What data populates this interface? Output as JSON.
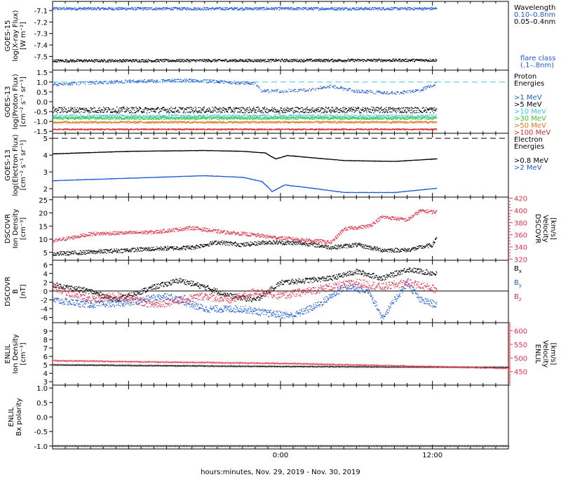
{
  "chart_data": {
    "type": "scatter",
    "xlabel": "hours:minutes, Nov. 29, 2019 - Nov. 30, 2019",
    "x_range_hours": [
      -18,
      18
    ],
    "x_ticks": [
      {
        "h": 0,
        "label": "0:00"
      },
      {
        "h": 12,
        "label": "12:00"
      }
    ],
    "data_end_hour": 12.3,
    "panels": [
      {
        "id": "goes15-xray",
        "ylabel": [
          "GOES-15",
          "log(X-ray Flux)",
          "[W m⁻²]"
        ],
        "ylim": [
          -7.62,
          -7.02
        ],
        "yticks": [
          -7.1,
          -7.2,
          -7.3,
          -7.4,
          -7.5
        ],
        "ytick_labels": [
          "-7.1",
          "-7.2",
          "-7.3",
          "-7.4",
          "-7.5"
        ],
        "right_legend": [
          {
            "text": "Wavelength",
            "color": "#000000"
          },
          {
            "text": "0.10–0.8nm",
            "color": "#1e5bd8"
          },
          {
            "text": "0.05–0.4nm",
            "color": "#000000"
          }
        ],
        "right_legend_bottom": [
          {
            "text": "flare class",
            "color": "#1e5bd8"
          },
          {
            "text": "(.1–.8nm)",
            "color": "#1e5bd8"
          }
        ],
        "series": [
          {
            "name": "0.10–0.8nm",
            "color": "#1e5bd8",
            "base": -7.08,
            "noise": 0.012,
            "pts": [
              [
                -18,
                -7.08
              ],
              [
                12.3,
                -7.08
              ]
            ]
          },
          {
            "name": "0.05–0.4nm",
            "color": "#000000",
            "base": -7.535,
            "noise": 0.012,
            "pts": [
              [
                -18,
                -7.535
              ],
              [
                12.3,
                -7.53
              ]
            ]
          }
        ]
      },
      {
        "id": "goes13-proton",
        "ylabel": [
          "GOES-13",
          "log(Proton Flux)",
          "[cm⁻² s⁻¹ sr⁻¹]"
        ],
        "ylim": [
          -1.6,
          1.6
        ],
        "yticks": [
          1.5,
          1.0,
          0.5,
          0.0,
          -0.5,
          -1.0,
          -1.5
        ],
        "ytick_labels": [
          "1.5",
          "1.0",
          "0.5",
          "0.0",
          "-0.5",
          "-1.0",
          "-1.5"
        ],
        "threshold": {
          "value": 1.0,
          "color": "#3ec8e8"
        },
        "right_legend": [
          {
            "text": "Proton",
            "color": "#000000"
          },
          {
            "text": "Energies",
            "color": "#000000"
          },
          {
            "text": "",
            "color": "#000000"
          },
          {
            "text": ">1 MeV",
            "color": "#1e5bd8"
          },
          {
            "text": ">5 MeV",
            "color": "#000000"
          },
          {
            "text": ">10 MeV",
            "color": "#3ec8e8"
          },
          {
            "text": ">30 MeV",
            "color": "#3cc83c"
          },
          {
            "text": ">50 MeV",
            "color": "#e07820"
          },
          {
            "text": ">100 MeV",
            "color": "#e02828"
          }
        ],
        "series": [
          {
            "name": ">1 MeV",
            "color": "#1e5bd8",
            "noise": 0.08,
            "sparse": 2,
            "pts": [
              [
                -18,
                0.9
              ],
              [
                -12,
                1.05
              ],
              [
                -7,
                1.1
              ],
              [
                -4,
                1.0
              ],
              [
                -2,
                0.95
              ],
              [
                -1.5,
                0.55
              ],
              [
                2,
                0.6
              ],
              [
                4,
                0.8
              ],
              [
                6,
                0.55
              ],
              [
                9,
                0.45
              ],
              [
                11,
                0.6
              ],
              [
                12.3,
                0.95
              ]
            ]
          },
          {
            "name": ">5 MeV",
            "color": "#000000",
            "noise": 0.15,
            "sparse": 1,
            "pts": [
              [
                -18,
                -0.4
              ],
              [
                12.3,
                -0.4
              ]
            ]
          },
          {
            "name": ">10 MeV",
            "color": "#3ec8e8",
            "noise": 0.08,
            "sparse": 1,
            "pts": [
              [
                -18,
                -0.72
              ],
              [
                12.3,
                -0.72
              ]
            ]
          },
          {
            "name": ">30 MeV",
            "color": "#3cc83c",
            "noise": 0.06,
            "sparse": 1,
            "pts": [
              [
                -18,
                -0.82
              ],
              [
                12.3,
                -0.82
              ]
            ]
          },
          {
            "name": ">50 MeV",
            "color": "#e07820",
            "noise": 0.05,
            "sparse": 1,
            "pts": [
              [
                -18,
                -1.02
              ],
              [
                12.3,
                -1.02
              ]
            ]
          },
          {
            "name": ">100 MeV",
            "color": "#e02828",
            "noise": 0.03,
            "sparse": 1,
            "pts": [
              [
                -18,
                -1.38
              ],
              [
                12.3,
                -1.38
              ]
            ]
          }
        ]
      },
      {
        "id": "goes13-electron",
        "ylabel": [
          "GOES-13",
          "log(Electron Flux)",
          "[cm⁻² s⁻¹ sr⁻¹]"
        ],
        "ylim": [
          1.5,
          5.3
        ],
        "yticks": [
          5,
          4,
          3,
          2
        ],
        "ytick_labels": [
          "5",
          "4",
          "3",
          "2"
        ],
        "threshold": {
          "value": 5.0,
          "color": "#000000"
        },
        "right_legend": [
          {
            "text": "Electron",
            "color": "#000000"
          },
          {
            "text": "Energies",
            "color": "#000000"
          },
          {
            "text": "",
            "color": "#000000"
          },
          {
            "text": ">0.8 MeV",
            "color": "#000000"
          },
          {
            "text": ">2 MeV",
            "color": "#1e5bd8"
          }
        ],
        "series": [
          {
            "name": ">0.8 MeV",
            "color": "#000000",
            "noise": 0.01,
            "line": true,
            "pts": [
              [
                -18,
                4.1
              ],
              [
                -12,
                4.25
              ],
              [
                -6,
                4.3
              ],
              [
                -3,
                4.25
              ],
              [
                -1.2,
                4.15
              ],
              [
                -0.8,
                3.95
              ],
              [
                -0.4,
                3.8
              ],
              [
                0.5,
                4.0
              ],
              [
                2,
                3.9
              ],
              [
                5,
                3.7
              ],
              [
                9,
                3.65
              ],
              [
                12.3,
                3.8
              ]
            ]
          },
          {
            "name": ">2 MeV",
            "color": "#1e5bd8",
            "noise": 0.01,
            "line": true,
            "pts": [
              [
                -18,
                2.5
              ],
              [
                -12,
                2.65
              ],
              [
                -6,
                2.8
              ],
              [
                -3,
                2.7
              ],
              [
                -1.5,
                2.45
              ],
              [
                -1,
                2.1
              ],
              [
                -0.7,
                1.85
              ],
              [
                0.3,
                2.25
              ],
              [
                2,
                2.1
              ],
              [
                5,
                1.8
              ],
              [
                9,
                1.8
              ],
              [
                12.3,
                2.05
              ]
            ]
          }
        ]
      },
      {
        "id": "dscovr-density",
        "ylabel": [
          "DSCOVR",
          "Ion Density",
          "[cm⁻³]"
        ],
        "ylim": [
          2,
          26
        ],
        "yticks": [
          25,
          20,
          15,
          10,
          5
        ],
        "ytick_labels": [
          "25",
          "20",
          "15",
          "10",
          "5"
        ],
        "right_axis": {
          "ylabel": [
            "DSCOVR",
            "Velocity",
            "[km/s]"
          ],
          "ylim": [
            318,
            422
          ],
          "ticks": [
            420,
            400,
            380,
            360,
            340,
            320
          ],
          "color": "#e0304a"
        },
        "series": [
          {
            "name": "density",
            "color": "#000000",
            "noise": 0.8,
            "pts": [
              [
                -18,
                4.5
              ],
              [
                -14,
                5.5
              ],
              [
                -10,
                6.5
              ],
              [
                -7,
                7
              ],
              [
                -5,
                9
              ],
              [
                -3,
                8
              ],
              [
                -1,
                9
              ],
              [
                2,
                8.5
              ],
              [
                4,
                7
              ],
              [
                6,
                8
              ],
              [
                8,
                6
              ],
              [
                10,
                6
              ],
              [
                12,
                8
              ],
              [
                12.3,
                11
              ]
            ]
          },
          {
            "name": "velocity",
            "color": "#e0304a",
            "noise": 3,
            "right": true,
            "pts": [
              [
                -18,
                350
              ],
              [
                -15,
                362
              ],
              [
                -10,
                365
              ],
              [
                -7,
                372
              ],
              [
                -5,
                366
              ],
              [
                -2,
                360
              ],
              [
                0,
                355
              ],
              [
                2,
                352
              ],
              [
                4,
                348
              ],
              [
                5,
                370
              ],
              [
                7,
                375
              ],
              [
                8,
                390
              ],
              [
                10,
                385
              ],
              [
                11,
                400
              ],
              [
                12.3,
                398
              ]
            ]
          }
        ]
      },
      {
        "id": "dscovr-b",
        "ylabel": [
          "DSCOVR",
          "B",
          "[nT]"
        ],
        "ylim": [
          -7.2,
          7
        ],
        "yticks": [
          6,
          4,
          2,
          0,
          -2,
          -4,
          -6
        ],
        "ytick_labels": [
          "6",
          "4",
          "2",
          "0",
          "-2",
          "-4",
          "-6"
        ],
        "zero_line": 0,
        "right_legend_b": [
          {
            "text": "Bx",
            "color": "#000000"
          },
          {
            "text": "By",
            "color": "#1e5bd8"
          },
          {
            "text": "Bz",
            "color": "#e0304a"
          }
        ],
        "series": [
          {
            "name": "Bx",
            "color": "#000000",
            "noise": 0.6,
            "pts": [
              [
                -18,
                1.5
              ],
              [
                -15,
                0
              ],
              [
                -13,
                -2
              ],
              [
                -10,
                1
              ],
              [
                -8,
                2.5
              ],
              [
                -6,
                1
              ],
              [
                -4,
                -1
              ],
              [
                -2,
                -2
              ],
              [
                0,
                2
              ],
              [
                2,
                2.5
              ],
              [
                4,
                3
              ],
              [
                6,
                4.5
              ],
              [
                8,
                3
              ],
              [
                10,
                5
              ],
              [
                12.3,
                4
              ]
            ]
          },
          {
            "name": "By",
            "color": "#1e5bd8",
            "noise": 0.8,
            "pts": [
              [
                -18,
                -2
              ],
              [
                -15,
                -3
              ],
              [
                -12,
                -2.5
              ],
              [
                -9,
                -1
              ],
              [
                -6,
                -4
              ],
              [
                -3,
                -4
              ],
              [
                -1,
                -5
              ],
              [
                1,
                -5.5
              ],
              [
                3,
                -3
              ],
              [
                5,
                1
              ],
              [
                7,
                0
              ],
              [
                8,
                -6
              ],
              [
                10,
                2
              ],
              [
                11,
                -2
              ],
              [
                12.3,
                -3
              ]
            ]
          },
          {
            "name": "Bz",
            "color": "#e0304a",
            "noise": 0.9,
            "pts": [
              [
                -18,
                1
              ],
              [
                -15,
                -2
              ],
              [
                -13,
                -1
              ],
              [
                -10,
                -3
              ],
              [
                -8,
                -2
              ],
              [
                -6,
                -1
              ],
              [
                -4,
                -2
              ],
              [
                -2,
                0
              ],
              [
                0,
                -1
              ],
              [
                2,
                0
              ],
              [
                4,
                1
              ],
              [
                6,
                2
              ],
              [
                8,
                1
              ],
              [
                10,
                2
              ],
              [
                12.3,
                0.5
              ]
            ]
          }
        ]
      },
      {
        "id": "enlil-density",
        "ylabel": [
          "ENLIL",
          "Ion Density",
          "[cm⁻³]"
        ],
        "ylim": [
          2.6,
          10
        ],
        "yticks": [
          9,
          8,
          7,
          6,
          5,
          4,
          3
        ],
        "ytick_labels": [
          "9",
          "8",
          "7",
          "6",
          "5",
          "4",
          "3"
        ],
        "right_axis": {
          "ylabel": [
            "ENLIL",
            "Velocity",
            "[km/s]"
          ],
          "ylim": [
            400,
            630
          ],
          "ticks": [
            600,
            550,
            500,
            450
          ],
          "color": "#e0304a"
        },
        "series": [
          {
            "name": "density",
            "color": "#000000",
            "noise": 0.02,
            "plus": true,
            "pts": [
              [
                -18,
                5
              ],
              [
                -10,
                4.9
              ],
              [
                0,
                4.8
              ],
              [
                10,
                4.75
              ],
              [
                18,
                4.7
              ]
            ]
          },
          {
            "name": "velocity",
            "color": "#e0304a",
            "noise": 1,
            "plus": true,
            "right": true,
            "pts": [
              [
                -18,
                490
              ],
              [
                -10,
                485
              ],
              [
                0,
                480
              ],
              [
                10,
                470
              ],
              [
                18,
                462
              ]
            ]
          }
        ]
      },
      {
        "id": "enlil-bx",
        "ylabel": [
          "ENLIL",
          "Bx polarity"
        ],
        "ylim": [
          -1.1,
          1.1
        ],
        "yticks": [
          1.0,
          0.5,
          0.0,
          -0.5,
          -1.0
        ],
        "ytick_labels": [
          "1.0",
          "0.5",
          "0.0",
          "-0.5",
          "-1.0"
        ],
        "series": [
          {
            "name": "polarity",
            "color": "#000000",
            "noise": 0,
            "plus": true,
            "pts": [
              [
                -18,
                -1
              ],
              [
                18,
                -1
              ]
            ]
          }
        ]
      }
    ]
  },
  "colors": {
    "cyan": "#3ec8e8",
    "blue": "#1e5bd8",
    "red": "#e0304a"
  }
}
